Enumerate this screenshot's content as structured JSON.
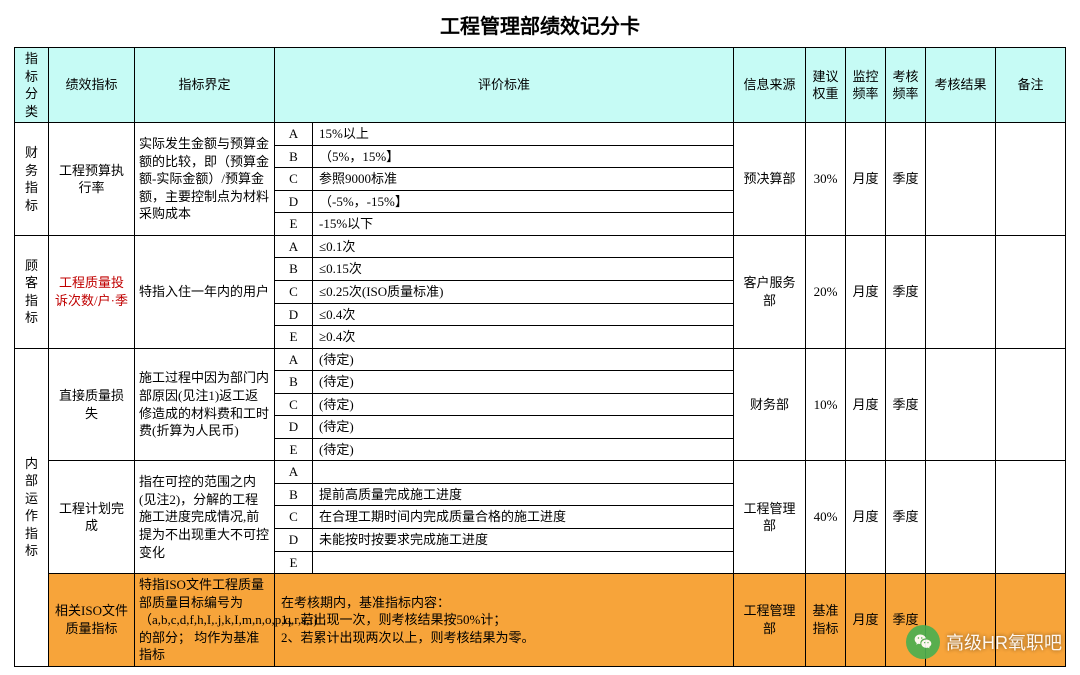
{
  "title": "工程管理部绩效记分卡",
  "headers": {
    "category": "指标分类",
    "kpi": "绩效指标",
    "definition": "指标界定",
    "criteria": "评价标准",
    "source": "信息来源",
    "weight": "建议权重",
    "monitor": "监控频率",
    "check": "考核频率",
    "result": "考核结果",
    "remark": "备注"
  },
  "categories": [
    {
      "name": "财务指标",
      "rowspan": 5,
      "items": [
        {
          "kpi": "工程预算执行率",
          "definition": "实际发生金额与预算金额的比较，即（预算金额-实际金额）/预算金额，主要控制点为材料采购成本",
          "rows": [
            {
              "g": "A",
              "d": "15%以上"
            },
            {
              "g": "B",
              "d": "（5%，15%】"
            },
            {
              "g": "C",
              "d": "参照9000标准"
            },
            {
              "g": "D",
              "d": "（-5%，-15%】"
            },
            {
              "g": "E",
              "d": "-15%以下"
            }
          ],
          "source": "预决算部",
          "weight": "30%",
          "monitor": "月度",
          "check": "季度"
        }
      ]
    },
    {
      "name": "顾客指标",
      "rowspan": 5,
      "items": [
        {
          "kpi": "工程质量投诉次数/户·季",
          "kpi_red": true,
          "definition": "特指入住一年内的用户",
          "rows": [
            {
              "g": "A",
              "d": "≤0.1次"
            },
            {
              "g": "B",
              "d": "≤0.15次"
            },
            {
              "g": "C",
              "d": "≤0.25次(ISO质量标准)"
            },
            {
              "g": "D",
              "d": "≤0.4次"
            },
            {
              "g": "E",
              "d": "≥0.4次"
            }
          ],
          "source": "客户服务部",
          "weight": "20%",
          "monitor": "月度",
          "check": "季度"
        }
      ]
    },
    {
      "name": "内部运作指标",
      "rowspan": 11,
      "items": [
        {
          "kpi": "直接质量损失",
          "definition": "施工过程中因为部门内部原因(见注1)返工返修造成的材料费和工时费(折算为人民币)",
          "rows": [
            {
              "g": "A",
              "d": "(待定)"
            },
            {
              "g": "B",
              "d": "(待定)"
            },
            {
              "g": "C",
              "d": "(待定)"
            },
            {
              "g": "D",
              "d": "(待定)"
            },
            {
              "g": "E",
              "d": "(待定)"
            }
          ],
          "source": "财务部",
          "weight": "10%",
          "monitor": "月度",
          "check": "季度"
        },
        {
          "kpi": "工程计划完成",
          "definition": "指在可控的范围之内(见注2)，分解的工程施工进度完成情况,前提为不出现重大不可控变化",
          "rows": [
            {
              "g": "A",
              "d": ""
            },
            {
              "g": "B",
              "d": "提前高质量完成施工进度"
            },
            {
              "g": "C",
              "d": "在合理工期时间内完成质量合格的施工进度"
            },
            {
              "g": "D",
              "d": "未能按时按要求完成施工进度"
            },
            {
              "g": "E",
              "d": ""
            }
          ],
          "source": "工程管理部",
          "weight": "40%",
          "monitor": "月度",
          "check": "季度"
        },
        {
          "kpi": "相关ISO文件质量指标",
          "definition": "特指ISO文件工程质量部质量目标编号为（a,b,c,d,f,h,I,.j,k,I,m,n,o,p,q,r,s,t)的部分；  均作为基准指标",
          "single_row": true,
          "criteria_text": "在考核期内，基准指标内容：\n1、若出现一次，则考核结果按50%计；\n2、若累计出现两次以上，则考核结果为零。",
          "source": "工程管理部",
          "weight": "基准指标",
          "monitor": "月度",
          "check": "季度",
          "orange": true
        }
      ]
    }
  ],
  "watermark": "高级HR氧职吧",
  "colors": {
    "header_bg": "#c6fbf5",
    "highlight_bg": "#f7a43a",
    "red_text": "#c00000",
    "border": "#000000"
  }
}
